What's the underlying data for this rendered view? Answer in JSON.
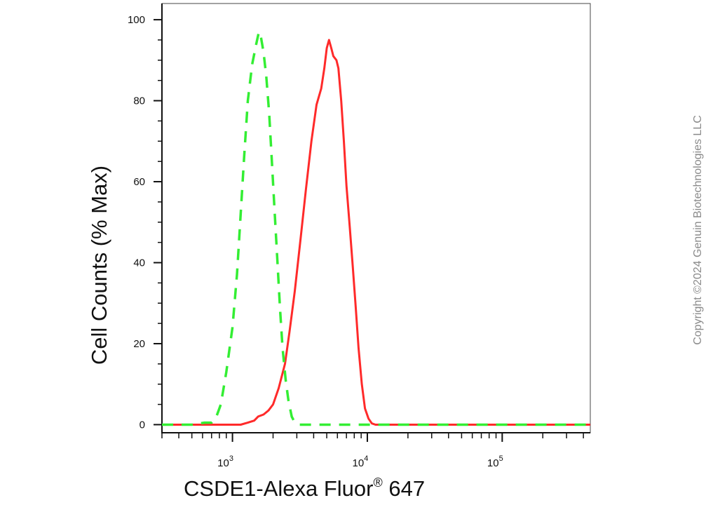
{
  "chart_data": {
    "type": "line",
    "xlabel": "CSDE1-Alexa Fluor",
    "xlabel_superscript": "®",
    "xlabel_suffix": " 647",
    "ylabel": "Cell Counts (% Max)",
    "x_scale": "log",
    "xlim": [
      300,
      450000
    ],
    "ylim": [
      -2,
      104
    ],
    "y_ticks": [
      "0",
      "20",
      "40",
      "60",
      "80",
      "100"
    ],
    "x_ticks": [
      {
        "value": 1000,
        "base": "10",
        "exp": "3"
      },
      {
        "value": 10000,
        "base": "10",
        "exp": "4"
      },
      {
        "value": 100000,
        "base": "10",
        "exp": "5"
      }
    ],
    "grid": false,
    "series": [
      {
        "color": "#ff2a2a",
        "style": "solid",
        "points": [
          [
            300,
            0
          ],
          [
            400,
            0
          ],
          [
            600,
            0
          ],
          [
            800,
            0
          ],
          [
            1000,
            0
          ],
          [
            1150,
            0
          ],
          [
            1300,
            0.5
          ],
          [
            1450,
            1
          ],
          [
            1550,
            2
          ],
          [
            1700,
            2.5
          ],
          [
            1850,
            3.5
          ],
          [
            2000,
            5
          ],
          [
            2200,
            9
          ],
          [
            2450,
            15
          ],
          [
            2650,
            23
          ],
          [
            2900,
            33
          ],
          [
            3200,
            46
          ],
          [
            3500,
            58
          ],
          [
            3850,
            70
          ],
          [
            4200,
            79
          ],
          [
            4550,
            83
          ],
          [
            4800,
            88
          ],
          [
            5000,
            93
          ],
          [
            5200,
            95
          ],
          [
            5400,
            93
          ],
          [
            5600,
            91
          ],
          [
            5900,
            90
          ],
          [
            6100,
            88
          ],
          [
            6400,
            80
          ],
          [
            6700,
            70
          ],
          [
            7000,
            59
          ],
          [
            7400,
            49
          ],
          [
            7800,
            39
          ],
          [
            8200,
            29
          ],
          [
            8600,
            19
          ],
          [
            9100,
            10
          ],
          [
            9600,
            4
          ],
          [
            10200,
            1.5
          ],
          [
            10800,
            0.3
          ],
          [
            11500,
            0
          ],
          [
            13000,
            0
          ],
          [
            20000,
            0
          ],
          [
            50000,
            0
          ],
          [
            100000,
            0
          ],
          [
            200000,
            0
          ],
          [
            450000,
            0
          ]
        ]
      },
      {
        "color": "#33ee33",
        "style": "dashed",
        "points": [
          [
            300,
            0
          ],
          [
            500,
            0
          ],
          [
            620,
            0.5
          ],
          [
            700,
            0.5
          ],
          [
            760,
            2
          ],
          [
            820,
            5
          ],
          [
            900,
            13
          ],
          [
            1000,
            24
          ],
          [
            1080,
            37
          ],
          [
            1150,
            52
          ],
          [
            1220,
            66
          ],
          [
            1300,
            80
          ],
          [
            1400,
            89
          ],
          [
            1500,
            94
          ],
          [
            1570,
            97
          ],
          [
            1620,
            96
          ],
          [
            1700,
            92
          ],
          [
            1780,
            86
          ],
          [
            1870,
            77
          ],
          [
            1960,
            65
          ],
          [
            2050,
            53
          ],
          [
            2150,
            41
          ],
          [
            2250,
            29
          ],
          [
            2350,
            19
          ],
          [
            2480,
            11
          ],
          [
            2600,
            6
          ],
          [
            2750,
            2
          ],
          [
            2900,
            0.5
          ],
          [
            3100,
            0
          ],
          [
            3500,
            0
          ],
          [
            5000,
            0
          ],
          [
            10000,
            0
          ],
          [
            50000,
            0
          ],
          [
            100000,
            0
          ],
          [
            450000,
            0
          ]
        ]
      }
    ]
  },
  "copyright": "Copyright ©2024 Genuin Biotechnologies LLC"
}
